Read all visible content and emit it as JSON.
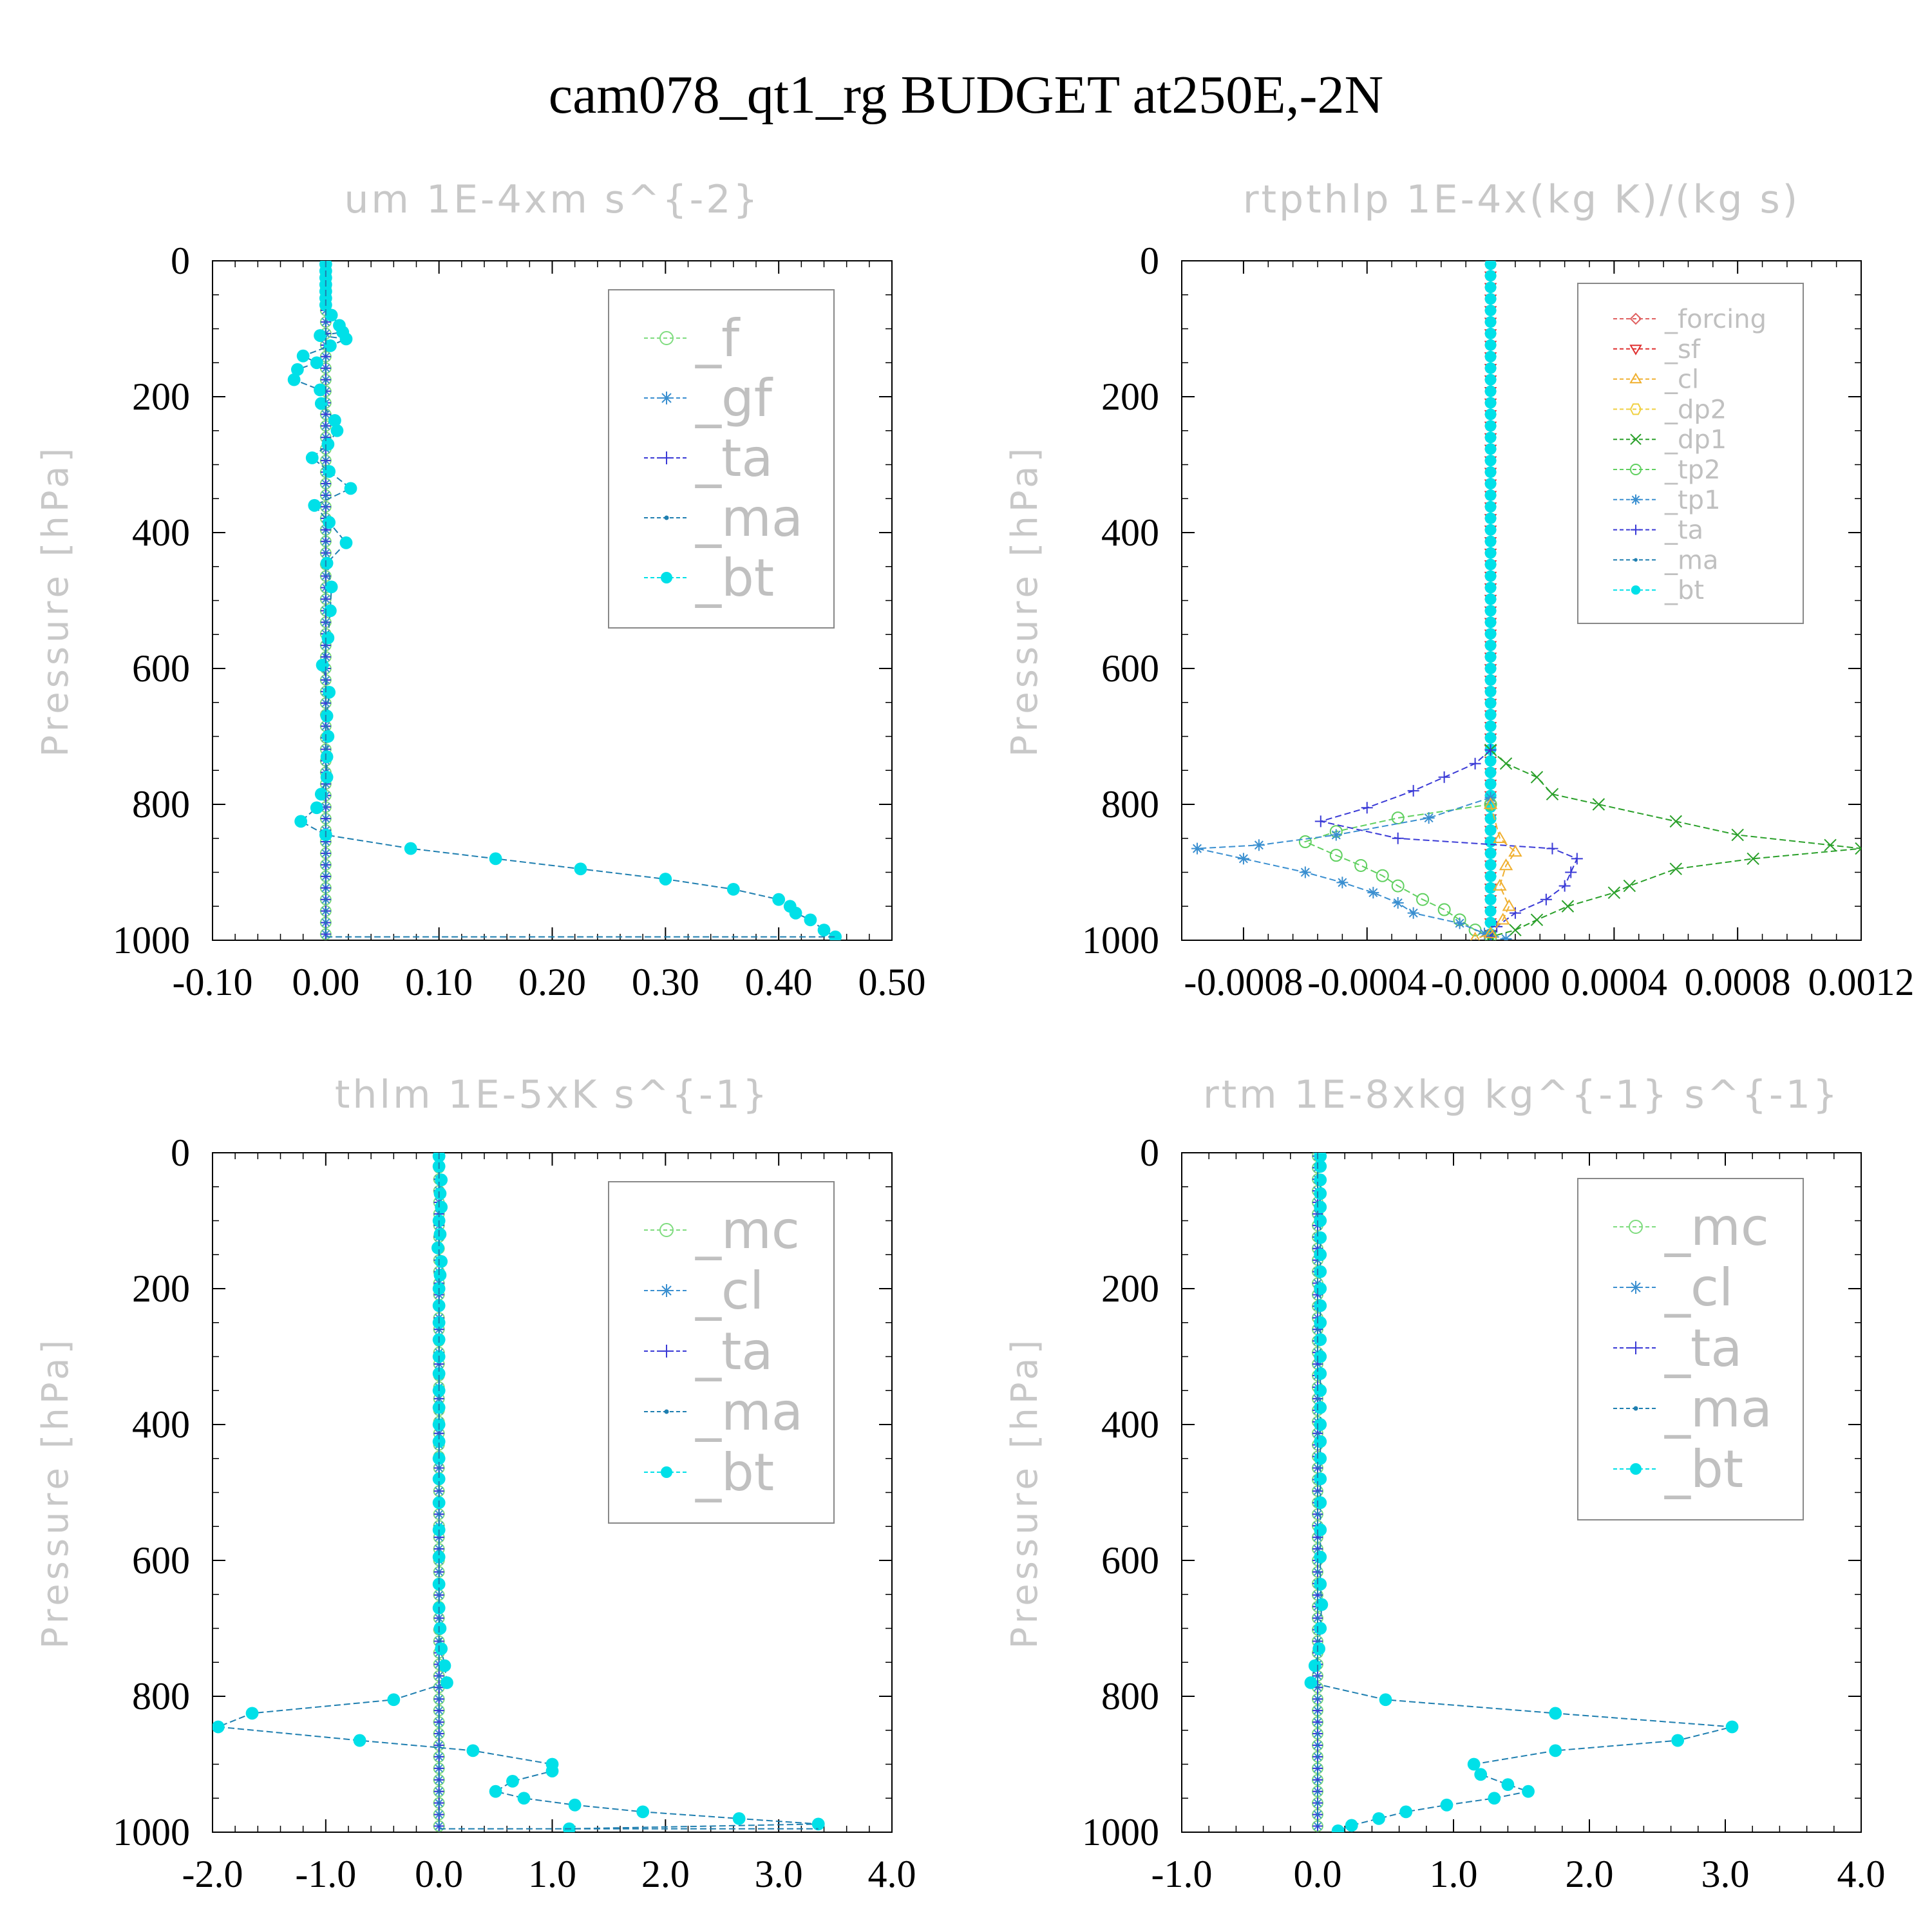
{
  "title": "cam078_qt1_rg  BUDGET at250E,-2N",
  "colors": {
    "f": "#7fdc7f",
    "gf": "#3a8fd0",
    "ta": "#3a3ad6",
    "ma": "#1f7fb0",
    "bt": "#00e0e8",
    "forcing": "#e06060",
    "sf": "#e03030",
    "cl": "#3a8fd0",
    "cl_orange": "#f0b030",
    "dp2": "#f0d040",
    "dp1": "#2aa02a",
    "tp2": "#60d060",
    "tp1": "#3a8fd0",
    "mc": "#7fdc7f"
  },
  "chart_data": [
    {
      "type": "line",
      "title": "um  1E-4xm s^{-2}",
      "ylabel": "Pressure [hPa]",
      "xlim": [
        -0.1,
        0.5
      ],
      "ylim": [
        1000,
        0
      ],
      "xticks": [
        "-0.10",
        "0.00",
        "0.10",
        "0.20",
        "0.30",
        "0.40",
        "0.50"
      ],
      "yticks": [
        "0",
        "200",
        "400",
        "600",
        "800",
        "1000"
      ],
      "legend": [
        "_f",
        "_gf",
        "_ta",
        "_ma",
        "_bt"
      ],
      "legend_size": "large",
      "zero_series": [
        "f",
        "gf",
        "ta"
      ],
      "series": [
        {
          "name": "_bt",
          "key": "bt",
          "points": [
            [
              0,
              5
            ],
            [
              0,
              15
            ],
            [
              0,
              25
            ],
            [
              0,
              35
            ],
            [
              0,
              45
            ],
            [
              0,
              55
            ],
            [
              0,
              65
            ],
            [
              0.005,
              80
            ],
            [
              0.012,
              95
            ],
            [
              0.015,
              105
            ],
            [
              -0.005,
              110
            ],
            [
              0.018,
              115
            ],
            [
              0.004,
              125
            ],
            [
              -0.02,
              140
            ],
            [
              -0.008,
              150
            ],
            [
              -0.025,
              160
            ],
            [
              -0.028,
              175
            ],
            [
              -0.005,
              190
            ],
            [
              -0.004,
              210
            ],
            [
              0.008,
              235
            ],
            [
              0.01,
              250
            ],
            [
              0.002,
              270
            ],
            [
              -0.012,
              290
            ],
            [
              0.003,
              310
            ],
            [
              0.022,
              335
            ],
            [
              -0.01,
              360
            ],
            [
              0.003,
              385
            ],
            [
              0.018,
              415
            ],
            [
              0.001,
              445
            ],
            [
              0.005,
              480
            ],
            [
              0.004,
              515
            ],
            [
              0.002,
              555
            ],
            [
              -0.003,
              595
            ],
            [
              0.003,
              635
            ],
            [
              0.001,
              670
            ],
            [
              0.002,
              700
            ],
            [
              0.001,
              730
            ],
            [
              0.001,
              760
            ],
            [
              -0.004,
              785
            ],
            [
              -0.008,
              805
            ],
            [
              -0.022,
              825
            ],
            [
              0,
              845
            ],
            [
              0.075,
              865
            ],
            [
              0.15,
              880
            ],
            [
              0.225,
              895
            ],
            [
              0.3,
              910
            ],
            [
              0.36,
              925
            ],
            [
              0.4,
              940
            ],
            [
              0.41,
              950
            ],
            [
              0.415,
              960
            ],
            [
              0.428,
              970
            ],
            [
              0.44,
              985
            ],
            [
              0.45,
              995
            ]
          ]
        },
        {
          "name": "_ma",
          "key": "ma",
          "points": [
            [
              0,
              0
            ],
            [
              0,
              995
            ],
            [
              0.45,
              995
            ]
          ]
        }
      ]
    },
    {
      "type": "line",
      "title": "rtpthlp  1E-4x(kg K)/(kg s)",
      "ylabel": "Pressure [hPa]",
      "xlim": [
        -0.001,
        0.0012
      ],
      "ylim": [
        1000,
        0
      ],
      "xticks": [
        "-0.0008",
        "-0.0004",
        "-0.0000",
        "0.0004",
        "0.0008",
        "0.0012"
      ],
      "xtick_values": [
        -0.0008,
        -0.0004,
        0,
        0.0004,
        0.0008,
        0.0012
      ],
      "yticks": [
        "0",
        "200",
        "400",
        "600",
        "800",
        "1000"
      ],
      "legend": [
        "_forcing",
        "_sf",
        "_cl",
        "_dp2",
        "_dp1",
        "_tp2",
        "_tp1",
        "_ta",
        "_ma",
        "_bt"
      ],
      "legend_size": "small",
      "zero_series": [
        "forcing",
        "sf",
        "bt"
      ],
      "series": [
        {
          "name": "_dp1",
          "key": "dp1",
          "points": [
            [
              0,
              720
            ],
            [
              5e-05,
              740
            ],
            [
              0.00015,
              760
            ],
            [
              0.0002,
              785
            ],
            [
              0.00035,
              800
            ],
            [
              0.0006,
              825
            ],
            [
              0.0008,
              845
            ],
            [
              0.0011,
              860
            ],
            [
              0.0012,
              865
            ],
            [
              0.00085,
              880
            ],
            [
              0.0006,
              895
            ],
            [
              0.00045,
              920
            ],
            [
              0.0004,
              930
            ],
            [
              0.00025,
              950
            ],
            [
              0.00015,
              970
            ],
            [
              8e-05,
              985
            ],
            [
              0,
              995
            ]
          ]
        },
        {
          "name": "_tp2",
          "key": "tp2",
          "points": [
            [
              0,
              800
            ],
            [
              -0.0003,
              820
            ],
            [
              -0.0005,
              840
            ],
            [
              -0.0006,
              855
            ],
            [
              -0.0005,
              875
            ],
            [
              -0.00042,
              890
            ],
            [
              -0.00035,
              905
            ],
            [
              -0.0003,
              920
            ],
            [
              -0.00022,
              940
            ],
            [
              -0.00015,
              955
            ],
            [
              -0.0001,
              970
            ],
            [
              -5e-05,
              985
            ],
            [
              0,
              995
            ]
          ]
        },
        {
          "name": "_tp1",
          "key": "tp1",
          "points": [
            [
              0,
              790
            ],
            [
              -0.0002,
              820
            ],
            [
              -0.0005,
              845
            ],
            [
              -0.00075,
              860
            ],
            [
              -0.00095,
              865
            ],
            [
              -0.0008,
              880
            ],
            [
              -0.0006,
              900
            ],
            [
              -0.00048,
              915
            ],
            [
              -0.00038,
              930
            ],
            [
              -0.0003,
              945
            ],
            [
              -0.00025,
              960
            ],
            [
              -0.0001,
              975
            ],
            [
              -2e-05,
              990
            ],
            [
              5e-05,
              998
            ]
          ]
        },
        {
          "name": "_ta",
          "key": "ta",
          "points": [
            [
              0,
              720
            ],
            [
              -5e-05,
              740
            ],
            [
              -0.00015,
              760
            ],
            [
              -0.00025,
              780
            ],
            [
              -0.0004,
              805
            ],
            [
              -0.00055,
              825
            ],
            [
              -0.0003,
              850
            ],
            [
              0.0002,
              865
            ],
            [
              0.00028,
              880
            ],
            [
              0.00026,
              900
            ],
            [
              0.00024,
              920
            ],
            [
              0.00018,
              940
            ],
            [
              8e-05,
              960
            ],
            [
              2e-05,
              980
            ],
            [
              0,
              995
            ]
          ]
        },
        {
          "name": "_cl",
          "key": "cl_orange",
          "points": [
            [
              0,
              800
            ],
            [
              3e-05,
              850
            ],
            [
              8e-05,
              870
            ],
            [
              5e-05,
              890
            ],
            [
              3e-05,
              920
            ],
            [
              6e-05,
              950
            ],
            [
              4e-05,
              970
            ],
            [
              0,
              990
            ],
            [
              -5e-05,
              998
            ]
          ]
        }
      ]
    },
    {
      "type": "line",
      "title": "thlm  1E-5xK s^{-1}",
      "ylabel": "Pressure [hPa]",
      "xlim": [
        -2.0,
        4.0
      ],
      "ylim": [
        1000,
        0
      ],
      "xticks": [
        "-2.0",
        "-1.0",
        "0.0",
        "1.0",
        "2.0",
        "3.0",
        "4.0"
      ],
      "yticks": [
        "0",
        "200",
        "400",
        "600",
        "800",
        "1000"
      ],
      "legend": [
        "_mc",
        "_cl",
        "_ta",
        "_ma",
        "_bt"
      ],
      "legend_size": "large",
      "zero_series": [
        "mc",
        "cl",
        "ta"
      ],
      "series": [
        {
          "name": "_bt",
          "key": "bt",
          "points": [
            [
              0,
              5
            ],
            [
              0,
              20
            ],
            [
              0.02,
              40
            ],
            [
              0.01,
              60
            ],
            [
              0.02,
              80
            ],
            [
              0,
              100
            ],
            [
              0.01,
              120
            ],
            [
              -0.01,
              140
            ],
            [
              0.02,
              160
            ],
            [
              0.01,
              180
            ],
            [
              0,
              200
            ],
            [
              0,
              225
            ],
            [
              0,
              250
            ],
            [
              0,
              275
            ],
            [
              0,
              300
            ],
            [
              0,
              325
            ],
            [
              0,
              350
            ],
            [
              0,
              375
            ],
            [
              0,
              400
            ],
            [
              0,
              425
            ],
            [
              0,
              450
            ],
            [
              0,
              480
            ],
            [
              0,
              515
            ],
            [
              0,
              555
            ],
            [
              0,
              595
            ],
            [
              0,
              635
            ],
            [
              0,
              670
            ],
            [
              0.01,
              700
            ],
            [
              0.02,
              730
            ],
            [
              0.05,
              755
            ],
            [
              0.07,
              780
            ],
            [
              -0.4,
              805
            ],
            [
              -1.65,
              825
            ],
            [
              -1.95,
              845
            ],
            [
              -0.7,
              865
            ],
            [
              0.3,
              880
            ],
            [
              1.0,
              900
            ],
            [
              1.0,
              910
            ],
            [
              0.65,
              925
            ],
            [
              0.5,
              940
            ],
            [
              0.75,
              950
            ],
            [
              1.2,
              960
            ],
            [
              1.8,
              970
            ],
            [
              2.65,
              980
            ],
            [
              3.35,
              988
            ],
            [
              1.15,
              995
            ]
          ]
        },
        {
          "name": "_ma",
          "key": "ma",
          "points": [
            [
              0,
              0
            ],
            [
              0,
              995
            ],
            [
              3.35,
              995
            ]
          ]
        }
      ]
    },
    {
      "type": "line",
      "title": "rtm  1E-8xkg kg^{-1} s^{-1}",
      "ylabel": "Pressure [hPa]",
      "xlim": [
        -1.0,
        4.0
      ],
      "ylim": [
        1000,
        0
      ],
      "xticks": [
        "-1.0",
        "0.0",
        "1.0",
        "2.0",
        "3.0",
        "4.0"
      ],
      "yticks": [
        "0",
        "200",
        "400",
        "600",
        "800",
        "1000"
      ],
      "legend": [
        "_mc",
        "_cl",
        "_ta",
        "_ma",
        "_bt"
      ],
      "legend_size": "large",
      "zero_series": [
        "mc",
        "cl",
        "ta"
      ],
      "series": [
        {
          "name": "_bt",
          "key": "bt",
          "points": [
            [
              0.02,
              5
            ],
            [
              0.02,
              20
            ],
            [
              0.02,
              40
            ],
            [
              0.02,
              60
            ],
            [
              0.02,
              80
            ],
            [
              0.02,
              100
            ],
            [
              0.02,
              125
            ],
            [
              0.02,
              150
            ],
            [
              0.02,
              175
            ],
            [
              0.02,
              200
            ],
            [
              0.02,
              225
            ],
            [
              0.02,
              250
            ],
            [
              0.02,
              275
            ],
            [
              0.02,
              300
            ],
            [
              0.02,
              325
            ],
            [
              0.02,
              350
            ],
            [
              0.02,
              375
            ],
            [
              0.02,
              400
            ],
            [
              0.02,
              425
            ],
            [
              0.02,
              450
            ],
            [
              0.02,
              480
            ],
            [
              0.02,
              515
            ],
            [
              0.02,
              555
            ],
            [
              0.02,
              595
            ],
            [
              0.02,
              635
            ],
            [
              0.03,
              665
            ],
            [
              0.02,
              700
            ],
            [
              0.01,
              730
            ],
            [
              -0.02,
              755
            ],
            [
              -0.05,
              780
            ],
            [
              0.5,
              805
            ],
            [
              1.75,
              825
            ],
            [
              3.05,
              845
            ],
            [
              2.65,
              865
            ],
            [
              1.75,
              880
            ],
            [
              1.15,
              900
            ],
            [
              1.2,
              915
            ],
            [
              1.4,
              930
            ],
            [
              1.55,
              940
            ],
            [
              1.3,
              950
            ],
            [
              0.95,
              960
            ],
            [
              0.65,
              970
            ],
            [
              0.45,
              980
            ],
            [
              0.25,
              990
            ],
            [
              0.15,
              998
            ]
          ]
        },
        {
          "name": "_ma",
          "key": "ma",
          "points": [
            [
              0,
              0
            ],
            [
              0,
              995
            ]
          ]
        }
      ]
    }
  ]
}
